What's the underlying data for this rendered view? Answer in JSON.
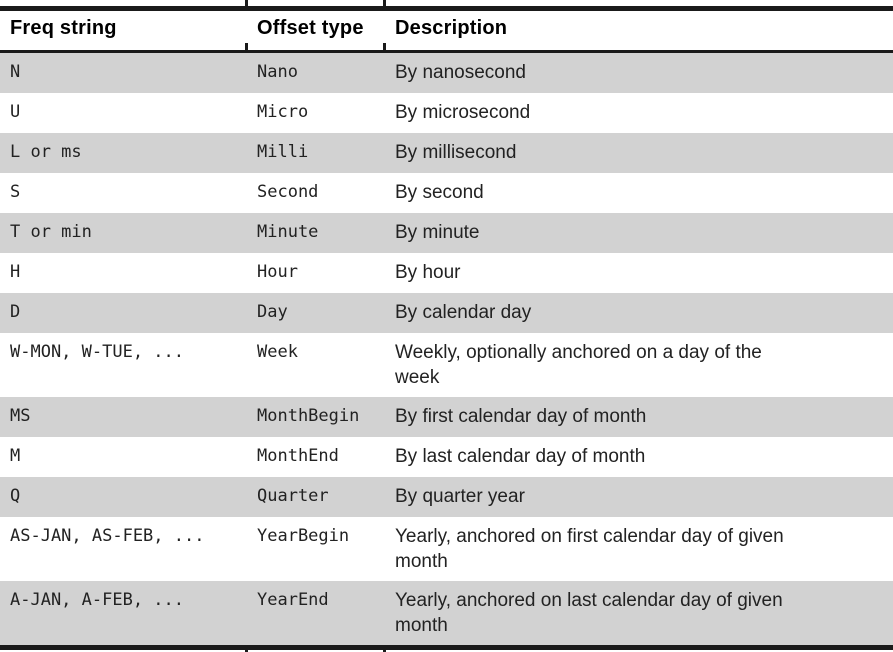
{
  "colors": {
    "row_shade": "#d2d2d2",
    "rule": "#1a1a1a",
    "text": "#222222"
  },
  "table": {
    "columns": [
      {
        "label": "Freq string"
      },
      {
        "label": "Offset type"
      },
      {
        "label": "Description"
      }
    ],
    "rows": [
      {
        "freq": "N",
        "offset": "Nano",
        "description": "By nanosecond",
        "shaded": true
      },
      {
        "freq": "U",
        "offset": "Micro",
        "description": "By microsecond",
        "shaded": false
      },
      {
        "freq": "L or ms",
        "offset": "Milli",
        "description": "By millisecond",
        "shaded": true
      },
      {
        "freq": "S",
        "offset": "Second",
        "description": "By second",
        "shaded": false
      },
      {
        "freq": "T or min",
        "offset": "Minute",
        "description": "By minute",
        "shaded": true
      },
      {
        "freq": "H",
        "offset": "Hour",
        "description": "By hour",
        "shaded": false
      },
      {
        "freq": "D",
        "offset": "Day",
        "description": "By calendar day",
        "shaded": true
      },
      {
        "freq": "W-MON, W-TUE, ...",
        "offset": "Week",
        "description": "Weekly, optionally anchored on a day of the\nweek",
        "shaded": false
      },
      {
        "freq": "MS",
        "offset": "MonthBegin",
        "description": "By first calendar day of month",
        "shaded": true
      },
      {
        "freq": "M",
        "offset": "MonthEnd",
        "description": "By last calendar day of month",
        "shaded": false
      },
      {
        "freq": "Q",
        "offset": "Quarter",
        "description": "By quarter year",
        "shaded": true
      },
      {
        "freq": "AS-JAN, AS-FEB, ...",
        "offset": "YearBegin",
        "description": "Yearly, anchored on first calendar day of given\nmonth",
        "shaded": false
      },
      {
        "freq": "A-JAN, A-FEB, ...",
        "offset": "YearEnd",
        "description": "Yearly, anchored on last calendar day of given\nmonth",
        "shaded": true
      }
    ]
  }
}
